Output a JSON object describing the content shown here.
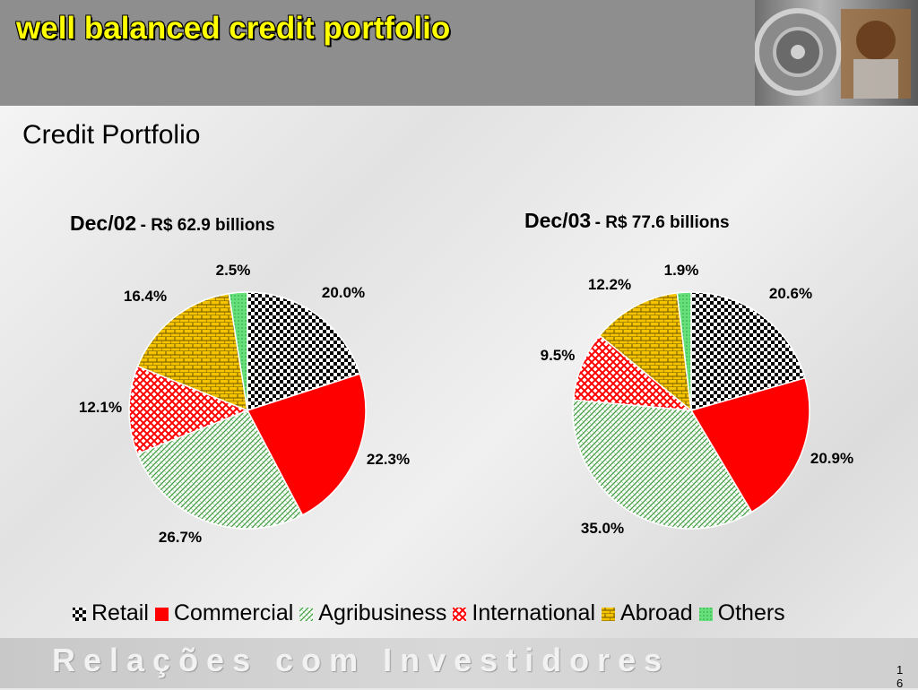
{
  "header": {
    "title": "well balanced credit portfolio"
  },
  "subtitle": "Credit Portfolio",
  "footer": {
    "text": "Relações com Investidores",
    "page": "16"
  },
  "legend": {
    "items": [
      {
        "label": "Retail",
        "pattern": "retail"
      },
      {
        "label": "Commercial",
        "pattern": "commercial"
      },
      {
        "label": "Agribusiness",
        "pattern": "agri"
      },
      {
        "label": "International",
        "pattern": "intl"
      },
      {
        "label": "Abroad",
        "pattern": "abroad"
      },
      {
        "label": "Others",
        "pattern": "others"
      }
    ]
  },
  "colors": {
    "retail": "#000000",
    "commercial": "#ff0000",
    "agribusiness": "#3c9a3c",
    "international": "#ff0000",
    "abroad": "#f5c400",
    "others": "#66e07a"
  },
  "chart_data": [
    {
      "type": "pie",
      "title": "Dec/02",
      "subtitle": "- R$ 62.9 billions",
      "categories": [
        "Retail",
        "Commercial",
        "Agribusiness",
        "International",
        "Abroad",
        "Others"
      ],
      "values": [
        20.0,
        22.3,
        26.7,
        12.1,
        16.4,
        2.5
      ],
      "labels": [
        "20.0%",
        "22.3%",
        "26.7%",
        "12.1%",
        "16.4%",
        "2.5%"
      ]
    },
    {
      "type": "pie",
      "title": "Dec/03",
      "subtitle": "- R$ 77.6 billions",
      "categories": [
        "Retail",
        "Commercial",
        "Agribusiness",
        "International",
        "Abroad",
        "Others"
      ],
      "values": [
        20.6,
        20.9,
        35.0,
        9.5,
        12.2,
        1.9
      ],
      "labels": [
        "20.6%",
        "20.9%",
        "35.0%",
        "9.5%",
        "12.2%",
        "1.9%"
      ]
    }
  ]
}
